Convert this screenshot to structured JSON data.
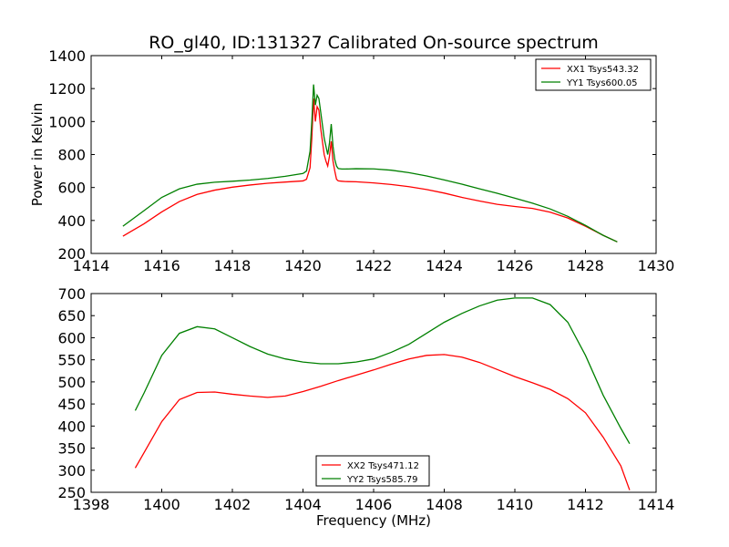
{
  "figure": {
    "title": "RO_gl40, ID:131327 Calibrated On-source spectrum"
  },
  "chart_data": [
    {
      "type": "line",
      "title": "RO_gl40, ID:131327 Calibrated On-source spectrum",
      "xlabel": "",
      "ylabel": "Power in Kelvin",
      "xlim": [
        1414,
        1430
      ],
      "ylim": [
        200,
        1400
      ],
      "xticks": [
        1414,
        1416,
        1418,
        1420,
        1422,
        1424,
        1426,
        1428,
        1430
      ],
      "yticks": [
        200,
        400,
        600,
        800,
        1000,
        1200,
        1400
      ],
      "legend_position": "top-right",
      "series": [
        {
          "name": "XX1 Tsys543.32",
          "color": "#ff0000",
          "x": [
            1414.9,
            1415.5,
            1416.0,
            1416.5,
            1417.0,
            1417.5,
            1418.0,
            1418.5,
            1419.0,
            1419.5,
            1420.0,
            1420.1,
            1420.2,
            1420.25,
            1420.3,
            1420.35,
            1420.4,
            1420.45,
            1420.5,
            1420.55,
            1420.6,
            1420.65,
            1420.7,
            1420.75,
            1420.8,
            1420.85,
            1420.9,
            1420.95,
            1421.0,
            1421.1,
            1421.2,
            1421.5,
            1422.0,
            1422.5,
            1423.0,
            1423.5,
            1424.0,
            1424.5,
            1425.0,
            1425.5,
            1426.0,
            1426.5,
            1427.0,
            1427.5,
            1428.0,
            1428.5,
            1428.9
          ],
          "values": [
            305,
            380,
            452,
            515,
            558,
            584,
            602,
            615,
            626,
            633,
            640,
            650,
            720,
            900,
            1140,
            1000,
            1090,
            1070,
            960,
            880,
            800,
            760,
            730,
            790,
            880,
            760,
            700,
            650,
            640,
            638,
            636,
            635,
            628,
            618,
            605,
            588,
            566,
            540,
            518,
            498,
            485,
            473,
            450,
            415,
            365,
            310,
            270
          ]
        },
        {
          "name": "YY1 Tsys600.05",
          "color": "#008000",
          "x": [
            1414.9,
            1415.5,
            1416.0,
            1416.5,
            1417.0,
            1417.5,
            1418.0,
            1418.5,
            1419.0,
            1419.5,
            1420.0,
            1420.1,
            1420.2,
            1420.25,
            1420.3,
            1420.35,
            1420.4,
            1420.45,
            1420.5,
            1420.55,
            1420.6,
            1420.65,
            1420.7,
            1420.75,
            1420.8,
            1420.85,
            1420.9,
            1420.95,
            1421.0,
            1421.1,
            1421.2,
            1421.5,
            1422.0,
            1422.5,
            1423.0,
            1423.5,
            1424.0,
            1424.5,
            1425.0,
            1425.5,
            1426.0,
            1426.5,
            1427.0,
            1427.5,
            1428.0,
            1428.5,
            1428.9
          ],
          "values": [
            365,
            460,
            540,
            592,
            620,
            632,
            638,
            645,
            655,
            668,
            685,
            700,
            820,
            1000,
            1225,
            1100,
            1160,
            1140,
            1060,
            980,
            900,
            850,
            800,
            870,
            985,
            850,
            770,
            730,
            715,
            712,
            712,
            714,
            713,
            705,
            690,
            670,
            646,
            620,
            592,
            565,
            535,
            505,
            470,
            425,
            370,
            310,
            270
          ]
        }
      ]
    },
    {
      "type": "line",
      "title": "",
      "xlabel": "Frequency (MHz)",
      "ylabel": "",
      "xlim": [
        1398,
        1414
      ],
      "ylim": [
        250,
        700
      ],
      "xticks": [
        1398,
        1400,
        1402,
        1404,
        1406,
        1408,
        1410,
        1412,
        1414
      ],
      "yticks": [
        250,
        300,
        350,
        400,
        450,
        500,
        550,
        600,
        650,
        700
      ],
      "legend_position": "bottom-center",
      "series": [
        {
          "name": "XX2 Tsys471.12",
          "color": "#ff0000",
          "x": [
            1399.25,
            1399.5,
            1400.0,
            1400.5,
            1401.0,
            1401.5,
            1402.0,
            1402.5,
            1403.0,
            1403.5,
            1404.0,
            1404.5,
            1405.0,
            1405.5,
            1406.0,
            1406.5,
            1407.0,
            1407.5,
            1408.0,
            1408.5,
            1409.0,
            1409.5,
            1410.0,
            1410.5,
            1411.0,
            1411.5,
            1412.0,
            1412.5,
            1413.0,
            1413.25
          ],
          "values": [
            305,
            340,
            410,
            460,
            476,
            477,
            472,
            468,
            465,
            468,
            478,
            490,
            503,
            515,
            527,
            540,
            552,
            560,
            562,
            556,
            544,
            528,
            512,
            498,
            483,
            462,
            430,
            375,
            310,
            255
          ]
        },
        {
          "name": "YY2 Tsys585.79",
          "color": "#008000",
          "x": [
            1399.25,
            1399.5,
            1400.0,
            1400.5,
            1401.0,
            1401.5,
            1402.0,
            1402.5,
            1403.0,
            1403.5,
            1404.0,
            1404.5,
            1405.0,
            1405.5,
            1406.0,
            1406.5,
            1407.0,
            1407.5,
            1408.0,
            1408.5,
            1409.0,
            1409.5,
            1410.0,
            1410.5,
            1411.0,
            1411.5,
            1412.0,
            1412.5,
            1413.0,
            1413.25
          ],
          "values": [
            435,
            475,
            560,
            610,
            625,
            620,
            600,
            580,
            563,
            552,
            545,
            541,
            541,
            545,
            552,
            567,
            585,
            610,
            635,
            655,
            672,
            685,
            690,
            690,
            675,
            635,
            560,
            470,
            395,
            360
          ]
        }
      ]
    }
  ]
}
